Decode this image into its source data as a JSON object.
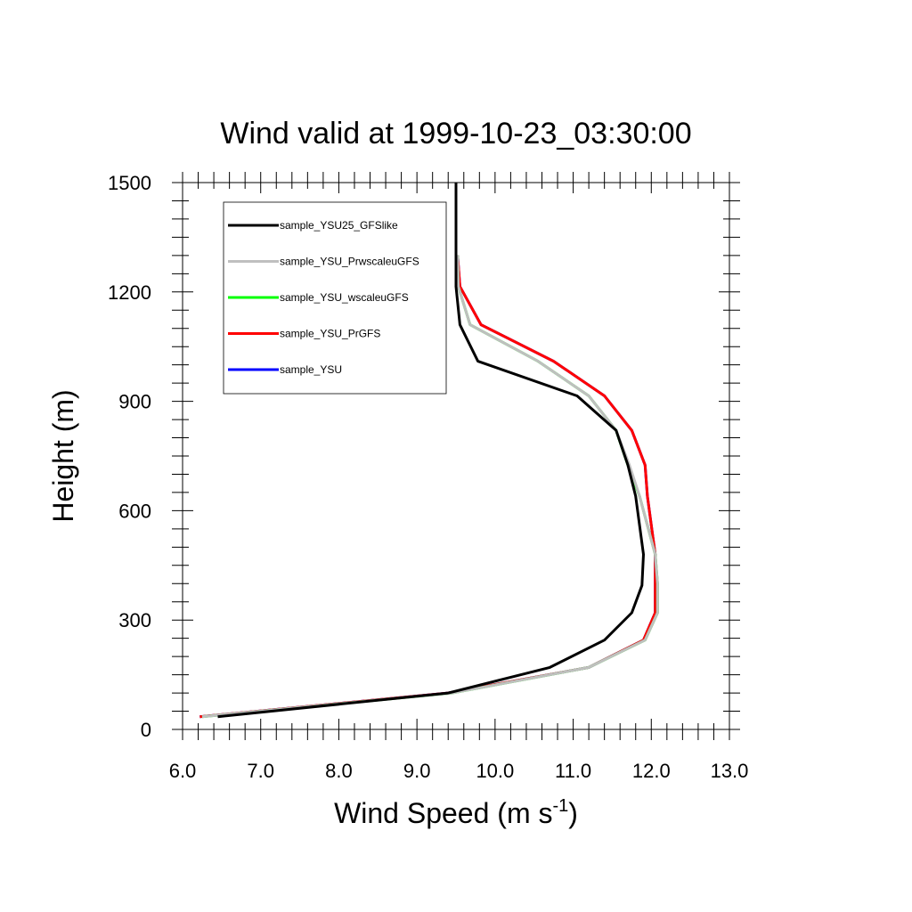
{
  "chart_data": {
    "type": "line",
    "title": "Wind valid at 1999-10-23_03:30:00",
    "xlabel": "Wind Speed (m s",
    "xlabel_sup": "-1",
    "xlabel_end": ")",
    "ylabel": "Height (m)",
    "xlim": [
      6.0,
      13.0
    ],
    "ylim": [
      0,
      1500
    ],
    "xticks": [
      "6.0",
      "7.0",
      "8.0",
      "9.0",
      "10.0",
      "11.0",
      "12.0",
      "13.0"
    ],
    "yticks": [
      "0",
      "300",
      "600",
      "900",
      "1200",
      "1500"
    ],
    "legend_position": "top-left",
    "series": [
      {
        "name": "sample_YSU",
        "color": "#0000ff",
        "points": [
          [
            6.22,
            35
          ],
          [
            9.4,
            100
          ],
          [
            11.2,
            170
          ],
          [
            11.9,
            245
          ],
          [
            12.05,
            320
          ],
          [
            12.05,
            400
          ],
          [
            12.05,
            480
          ],
          [
            12.0,
            560
          ],
          [
            11.95,
            640
          ],
          [
            11.92,
            725
          ],
          [
            11.75,
            820
          ],
          [
            11.4,
            915
          ],
          [
            10.75,
            1010
          ],
          [
            9.82,
            1110
          ],
          [
            9.55,
            1215
          ],
          [
            9.52,
            1300
          ]
        ]
      },
      {
        "name": "sample_YSU_PrGFS",
        "color": "#ff0000",
        "points": [
          [
            6.22,
            35
          ],
          [
            9.4,
            100
          ],
          [
            11.2,
            170
          ],
          [
            11.9,
            245
          ],
          [
            12.05,
            320
          ],
          [
            12.05,
            400
          ],
          [
            12.05,
            480
          ],
          [
            12.0,
            560
          ],
          [
            11.95,
            640
          ],
          [
            11.92,
            725
          ],
          [
            11.75,
            820
          ],
          [
            11.4,
            915
          ],
          [
            10.75,
            1010
          ],
          [
            9.82,
            1110
          ],
          [
            9.55,
            1215
          ],
          [
            9.52,
            1300
          ]
        ]
      },
      {
        "name": "sample_YSU_wscaleuGFS",
        "color": "#00ff00",
        "points": [
          [
            6.25,
            35
          ],
          [
            9.45,
            100
          ],
          [
            11.2,
            170
          ],
          [
            11.92,
            245
          ],
          [
            12.08,
            320
          ],
          [
            12.08,
            400
          ],
          [
            12.05,
            480
          ],
          [
            11.95,
            560
          ],
          [
            11.85,
            640
          ],
          [
            11.7,
            725
          ],
          [
            11.55,
            820
          ],
          [
            11.2,
            915
          ],
          [
            10.55,
            1010
          ],
          [
            9.68,
            1110
          ],
          [
            9.53,
            1215
          ],
          [
            9.52,
            1300
          ]
        ]
      },
      {
        "name": "sample_YSU_PrwscaleuGFS",
        "color": "#bfbfbf",
        "points": [
          [
            6.25,
            35
          ],
          [
            9.45,
            100
          ],
          [
            11.2,
            170
          ],
          [
            11.92,
            245
          ],
          [
            12.08,
            320
          ],
          [
            12.08,
            400
          ],
          [
            12.05,
            480
          ],
          [
            11.95,
            560
          ],
          [
            11.85,
            640
          ],
          [
            11.72,
            725
          ],
          [
            11.55,
            820
          ],
          [
            11.2,
            915
          ],
          [
            10.55,
            1010
          ],
          [
            9.68,
            1110
          ],
          [
            9.53,
            1215
          ],
          [
            9.52,
            1300
          ]
        ]
      },
      {
        "name": "sample_YSU25_GFSlike",
        "color": "#000000",
        "points": [
          [
            6.45,
            35
          ],
          [
            9.4,
            100
          ],
          [
            10.7,
            170
          ],
          [
            11.4,
            245
          ],
          [
            11.75,
            320
          ],
          [
            11.88,
            395
          ],
          [
            11.9,
            480
          ],
          [
            11.85,
            560
          ],
          [
            11.8,
            640
          ],
          [
            11.7,
            725
          ],
          [
            11.55,
            820
          ],
          [
            11.05,
            915
          ],
          [
            9.78,
            1010
          ],
          [
            9.55,
            1110
          ],
          [
            9.5,
            1215
          ],
          [
            9.5,
            1500
          ]
        ]
      }
    ],
    "legend_order": [
      "sample_YSU25_GFSlike",
      "sample_YSU_PrwscaleuGFS",
      "sample_YSU_wscaleuGFS",
      "sample_YSU_PrGFS",
      "sample_YSU"
    ]
  }
}
